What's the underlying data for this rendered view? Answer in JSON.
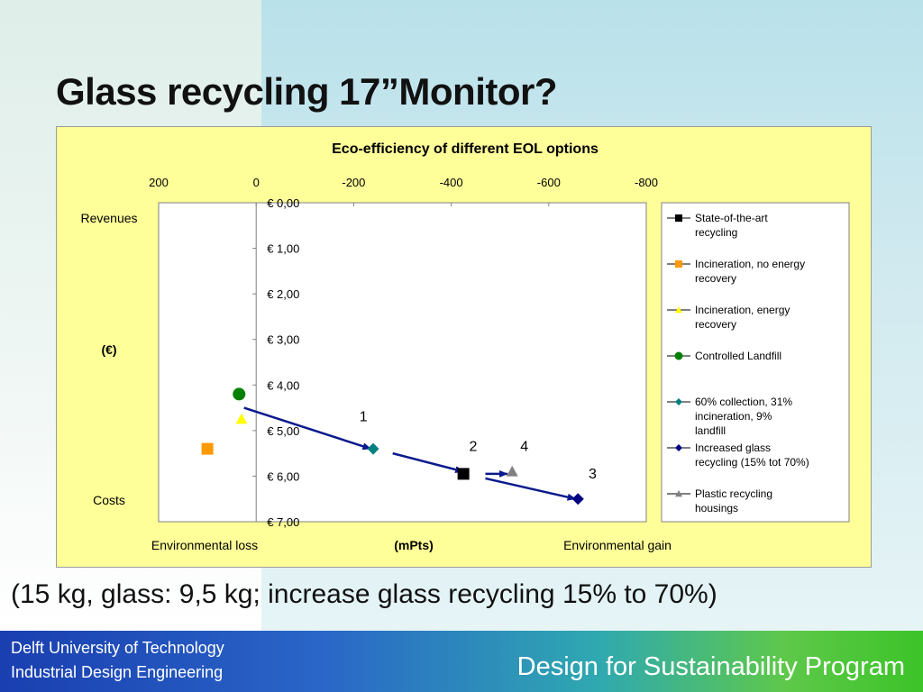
{
  "slide": {
    "title": "Glass recycling 17”Monitor?",
    "caption": "(15 kg, glass: 9,5 kg; increase glass recycling 15% to 70%)"
  },
  "footer": {
    "line1": "Delft University of Technology",
    "line2": "Industrial Design Engineering",
    "program": "Design for Sustainability Program"
  },
  "chart_data": {
    "type": "scatter",
    "title": "Eco-efficiency of different EOL options",
    "xlabel": "(mPts)",
    "xlabel_left": "Environmental loss",
    "xlabel_right": "Environmental gain",
    "ylabel": "(€)",
    "ylabel_top": "Revenues",
    "ylabel_bottom": "Costs",
    "x_ticks": [
      200,
      0,
      -200,
      -400,
      -600,
      -800
    ],
    "x_tick_labels": [
      "200",
      "0",
      "-200",
      "-400",
      "-600",
      "-800"
    ],
    "xlim": [
      200,
      -800
    ],
    "y_ticks": [
      0,
      1,
      2,
      3,
      4,
      5,
      6,
      7
    ],
    "y_tick_labels": [
      "€ 0,00",
      "€ 1,00",
      "€ 2,00",
      "€ 3,00",
      "€ 4,00",
      "€ 5,00",
      "€ 6,00",
      "€ 7,00"
    ],
    "ylim": [
      0,
      7
    ],
    "y_inverted": true,
    "axis_orientation": "x axis on top, y axis at x=0",
    "legend_position": "right",
    "grid": false,
    "plot_background": "#ffffff",
    "chart_background": "#ffff99",
    "series": [
      {
        "name": "State-of-the-art recycling",
        "marker": "square",
        "color": "#000000",
        "points": [
          {
            "x": -425,
            "y": 5.95
          }
        ]
      },
      {
        "name": "Incineration, no energy recovery",
        "marker": "square",
        "color": "#ff9900",
        "points": [
          {
            "x": 100,
            "y": 5.4
          }
        ]
      },
      {
        "name": "Incineration, energy recovery",
        "marker": "triangle",
        "color": "#ffff00",
        "points": [
          {
            "x": 30,
            "y": 4.75
          }
        ]
      },
      {
        "name": "Controlled Landfill",
        "marker": "circle",
        "color": "#008000",
        "points": [
          {
            "x": 35,
            "y": 4.2
          }
        ]
      },
      {
        "name": "60% collection, 31% incineration, 9% landfill",
        "marker": "diamond",
        "color": "#008080",
        "points": [
          {
            "x": -240,
            "y": 5.4
          }
        ]
      },
      {
        "name": "Increased glass recycling (15% tot 70%)",
        "marker": "diamond",
        "color": "#000080",
        "points": [
          {
            "x": -660,
            "y": 6.5
          }
        ]
      },
      {
        "name": "Plastic recycling housings",
        "marker": "triangle",
        "color": "#808080",
        "points": [
          {
            "x": -525,
            "y": 5.9
          }
        ]
      }
    ],
    "annotations": [
      {
        "label": "1",
        "from": {
          "x": 25,
          "y": 4.5
        },
        "to": {
          "x": -235,
          "y": 5.4
        },
        "label_at": {
          "x": -220,
          "y": 4.8
        }
      },
      {
        "label": "2",
        "from": {
          "x": -280,
          "y": 5.5
        },
        "to": {
          "x": -425,
          "y": 5.9
        },
        "label_at": {
          "x": -445,
          "y": 5.45
        }
      },
      {
        "label": "4",
        "from": {
          "x": -470,
          "y": 5.95
        },
        "to": {
          "x": -515,
          "y": 5.95
        },
        "label_at": {
          "x": -550,
          "y": 5.45
        }
      },
      {
        "label": "3",
        "from": {
          "x": -470,
          "y": 6.05
        },
        "to": {
          "x": -655,
          "y": 6.5
        },
        "label_at": {
          "x": -690,
          "y": 6.05
        }
      }
    ],
    "arrow_color": "#0a1a8c"
  }
}
